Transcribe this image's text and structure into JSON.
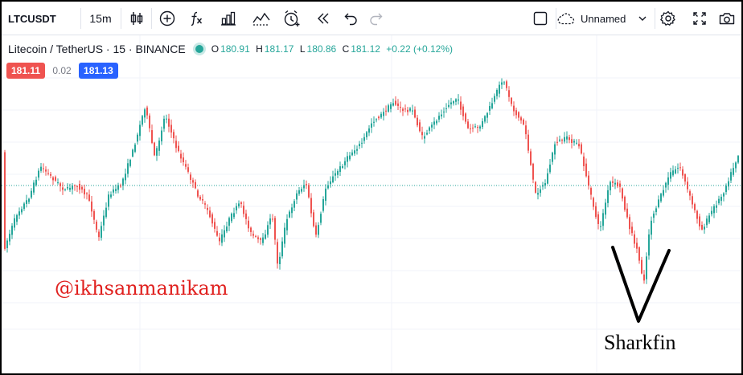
{
  "toolbar": {
    "symbol": "LTCUSDT",
    "interval": "15m",
    "layout_name": "Unnamed",
    "icons": [
      "candles-icon",
      "add-indicator-icon",
      "fx-icon",
      "bar-chart-icon",
      "compare-icon",
      "alert-clock-icon",
      "replay-icon",
      "undo-icon",
      "redo-icon",
      "square-icon",
      "cloud-icon",
      "chevron-down-icon",
      "gear-icon",
      "fullscreen-icon",
      "camera-icon"
    ]
  },
  "legend": {
    "title": "Litecoin / TetherUS · 15 · BINANCE",
    "open_label": "O",
    "open": "180.91",
    "high_label": "H",
    "high": "181.17",
    "low_label": "L",
    "low": "180.86",
    "close_label": "C",
    "close": "181.12",
    "change": "+0.22 (+0.12%)",
    "status_color": "#26a69a"
  },
  "prices": {
    "sell": "181.11",
    "spread": "0.02",
    "buy": "181.13",
    "sell_color": "#ef5350",
    "buy_color": "#2962ff"
  },
  "watermark": "@ikhsanmanikam",
  "annotation": "Sharkfin",
  "colors": {
    "up": "#26a69a",
    "down": "#ef5350"
  }
}
